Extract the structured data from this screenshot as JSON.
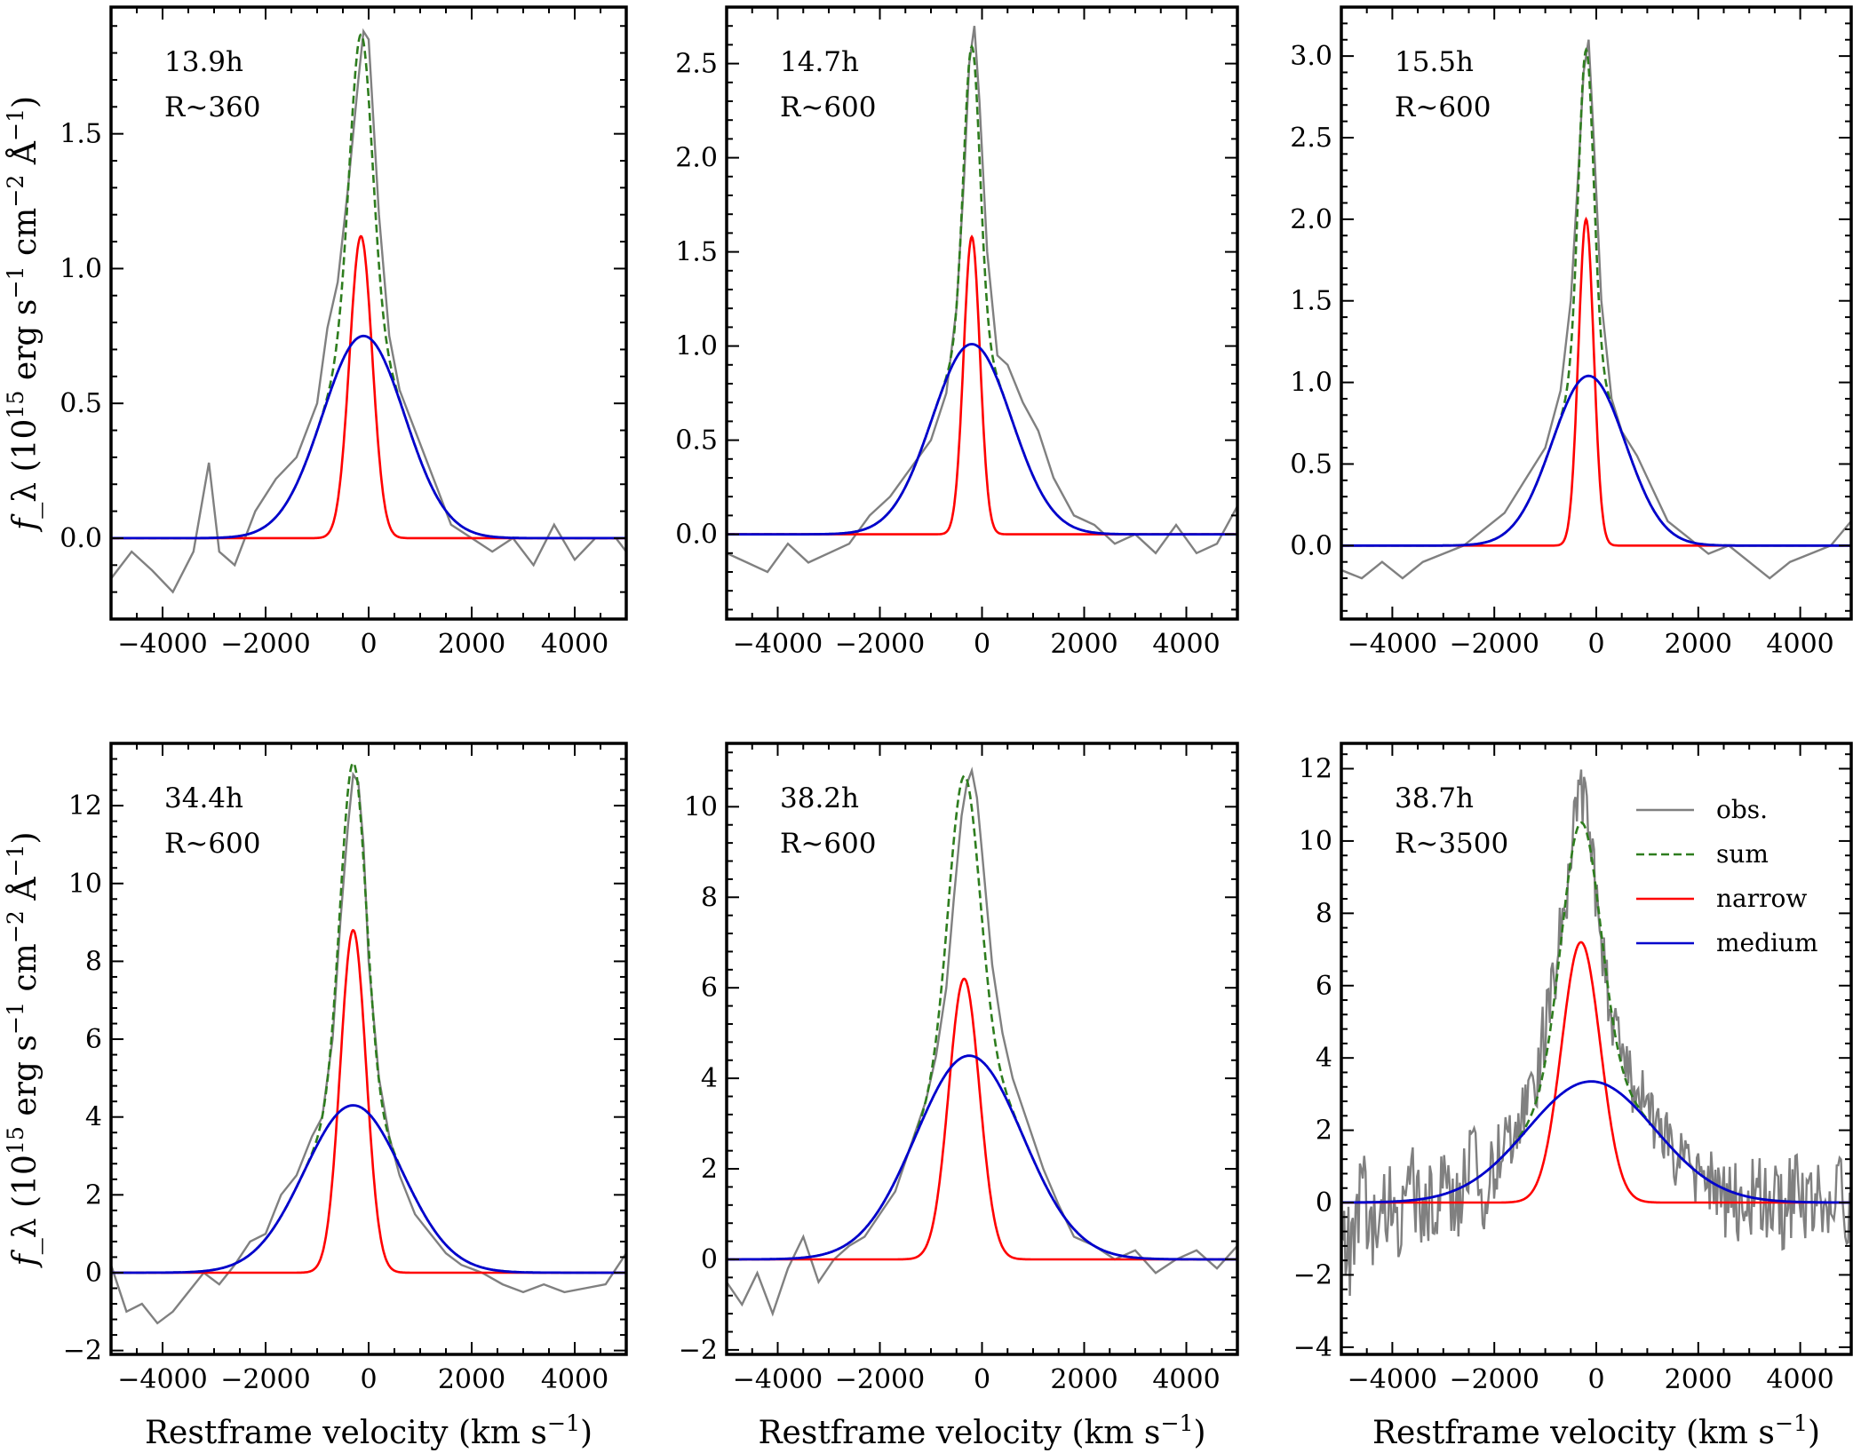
{
  "chart_data": [
    {
      "type": "line",
      "annotation_time": "13.9h",
      "annotation_resolution": "R~360",
      "xlim": [
        -5000,
        5000
      ],
      "ylim": [
        -0.3,
        1.97
      ],
      "x_ticks": [
        -4000,
        -2000,
        0,
        2000,
        4000
      ],
      "x_tick_labels": [
        "-4000",
        "-2000",
        "0",
        "2000",
        "4000"
      ],
      "y_ticks": [
        0.0,
        0.5,
        1.0,
        1.5
      ],
      "y_tick_labels": [
        "0.0",
        "0.5",
        "1.0",
        "1.5"
      ],
      "ylabel": "f_λ (10^15 erg s^-1 cm^-2 Å^-1)",
      "xlabel": "",
      "narrow": {
        "amplitude": 1.12,
        "center": -150,
        "sigma": 220
      },
      "medium": {
        "amplitude": 0.75,
        "center": -100,
        "sigma": 800
      },
      "observed": {
        "x": [
          -5000,
          -4600,
          -4200,
          -3800,
          -3400,
          -3100,
          -2900,
          -2600,
          -2200,
          -1800,
          -1400,
          -1000,
          -800,
          -600,
          -400,
          -200,
          -100,
          0,
          200,
          400,
          600,
          800,
          1000,
          1300,
          1600,
          2000,
          2400,
          2800,
          3200,
          3600,
          4000,
          4400,
          4800,
          5000
        ],
        "y": [
          -0.15,
          -0.05,
          -0.12,
          -0.2,
          -0.05,
          0.28,
          -0.05,
          -0.1,
          0.1,
          0.22,
          0.3,
          0.5,
          0.78,
          0.95,
          1.3,
          1.7,
          1.88,
          1.85,
          1.2,
          0.75,
          0.55,
          0.45,
          0.35,
          0.2,
          0.05,
          0.0,
          -0.05,
          0.0,
          -0.1,
          0.05,
          -0.08,
          0.0,
          0.0,
          -0.05
        ]
      }
    },
    {
      "type": "line",
      "annotation_time": "14.7h",
      "annotation_resolution": "R~600",
      "xlim": [
        -5000,
        5000
      ],
      "ylim": [
        -0.45,
        2.8
      ],
      "x_ticks": [
        -4000,
        -2000,
        0,
        2000,
        4000
      ],
      "x_tick_labels": [
        "-4000",
        "-2000",
        "0",
        "2000",
        "4000"
      ],
      "y_ticks": [
        0.0,
        0.5,
        1.0,
        1.5,
        2.0,
        2.5
      ],
      "y_tick_labels": [
        "0.0",
        "0.5",
        "1.0",
        "1.5",
        "2.0",
        "2.5"
      ],
      "ylabel": "",
      "xlabel": "",
      "narrow": {
        "amplitude": 1.58,
        "center": -200,
        "sigma": 160
      },
      "medium": {
        "amplitude": 1.01,
        "center": -200,
        "sigma": 780
      },
      "observed": {
        "x": [
          -5000,
          -4600,
          -4200,
          -3800,
          -3400,
          -3000,
          -2600,
          -2200,
          -1800,
          -1400,
          -1000,
          -700,
          -500,
          -350,
          -250,
          -150,
          -50,
          100,
          300,
          500,
          800,
          1100,
          1400,
          1800,
          2200,
          2600,
          3000,
          3400,
          3800,
          4200,
          4600,
          5000
        ],
        "y": [
          -0.1,
          -0.15,
          -0.2,
          -0.05,
          -0.15,
          -0.1,
          -0.05,
          0.1,
          0.2,
          0.35,
          0.5,
          0.75,
          1.2,
          1.9,
          2.5,
          2.7,
          2.3,
          1.5,
          0.95,
          0.9,
          0.7,
          0.55,
          0.3,
          0.1,
          0.05,
          -0.05,
          0.0,
          -0.1,
          0.05,
          -0.1,
          -0.05,
          0.15
        ]
      }
    },
    {
      "type": "line",
      "annotation_time": "15.5h",
      "annotation_resolution": "R~600",
      "xlim": [
        -5000,
        5000
      ],
      "ylim": [
        -0.45,
        3.3
      ],
      "x_ticks": [
        -4000,
        -2000,
        0,
        2000,
        4000
      ],
      "x_tick_labels": [
        "-4000",
        "-2000",
        "0",
        "2000",
        "4000"
      ],
      "y_ticks": [
        0.0,
        0.5,
        1.0,
        1.5,
        2.0,
        2.5,
        3.0
      ],
      "y_tick_labels": [
        "0.0",
        "0.5",
        "1.0",
        "1.5",
        "2.0",
        "2.5",
        "3.0"
      ],
      "ylabel": "",
      "xlabel": "",
      "narrow": {
        "amplitude": 2.0,
        "center": -200,
        "sigma": 150
      },
      "medium": {
        "amplitude": 1.04,
        "center": -150,
        "sigma": 720
      },
      "observed": {
        "x": [
          -5000,
          -4600,
          -4200,
          -3800,
          -3400,
          -3000,
          -2600,
          -2200,
          -1800,
          -1400,
          -1000,
          -700,
          -500,
          -350,
          -250,
          -150,
          -50,
          100,
          300,
          500,
          800,
          1100,
          1400,
          1800,
          2200,
          2600,
          3000,
          3400,
          3800,
          4200,
          4600,
          5000
        ],
        "y": [
          -0.15,
          -0.2,
          -0.1,
          -0.2,
          -0.1,
          -0.05,
          0.0,
          0.1,
          0.2,
          0.4,
          0.6,
          0.95,
          1.5,
          2.3,
          2.9,
          3.1,
          2.5,
          1.5,
          0.9,
          0.7,
          0.55,
          0.35,
          0.15,
          0.05,
          -0.05,
          0.0,
          -0.1,
          -0.2,
          -0.1,
          -0.05,
          0.0,
          0.15
        ]
      }
    },
    {
      "type": "line",
      "annotation_time": "34.4h",
      "annotation_resolution": "R~600",
      "xlim": [
        -5000,
        5000
      ],
      "ylim": [
        -2.1,
        13.6
      ],
      "x_ticks": [
        -4000,
        -2000,
        0,
        2000,
        4000
      ],
      "x_tick_labels": [
        "-4000",
        "-2000",
        "0",
        "2000",
        "4000"
      ],
      "y_ticks": [
        -2,
        0,
        2,
        4,
        6,
        8,
        10,
        12
      ],
      "y_tick_labels": [
        "−2",
        "0",
        "2",
        "4",
        "6",
        "8",
        "10",
        "12"
      ],
      "ylabel": "f_λ (10^15 erg s^-1 cm^-2 Å^-1)",
      "xlabel": "Restframe velocity (km s^-1)",
      "narrow": {
        "amplitude": 8.8,
        "center": -300,
        "sigma": 250
      },
      "medium": {
        "amplitude": 4.3,
        "center": -300,
        "sigma": 950
      },
      "observed": {
        "x": [
          -5000,
          -4700,
          -4400,
          -4100,
          -3800,
          -3500,
          -3200,
          -2900,
          -2600,
          -2300,
          -2000,
          -1700,
          -1400,
          -1100,
          -900,
          -700,
          -550,
          -400,
          -300,
          -200,
          -100,
          0,
          200,
          400,
          600,
          900,
          1200,
          1500,
          1800,
          2200,
          2600,
          3000,
          3400,
          3800,
          4200,
          4600,
          5000
        ],
        "y": [
          0.2,
          -1.0,
          -0.8,
          -1.3,
          -1.0,
          -0.5,
          0.0,
          -0.3,
          0.2,
          0.8,
          1.0,
          2.0,
          2.5,
          3.5,
          4.0,
          6.0,
          9.0,
          11.5,
          12.8,
          12.6,
          11.0,
          8.0,
          5.0,
          3.5,
          2.5,
          1.5,
          1.0,
          0.5,
          0.2,
          0.0,
          -0.3,
          -0.5,
          -0.3,
          -0.5,
          -0.4,
          -0.3,
          0.5
        ]
      }
    },
    {
      "type": "line",
      "annotation_time": "38.2h",
      "annotation_resolution": "R~600",
      "xlim": [
        -5000,
        5000
      ],
      "ylim": [
        -2.1,
        11.4
      ],
      "x_ticks": [
        -4000,
        -2000,
        0,
        2000,
        4000
      ],
      "x_tick_labels": [
        "-4000",
        "-2000",
        "0",
        "2000",
        "4000"
      ],
      "y_ticks": [
        -2,
        0,
        2,
        4,
        6,
        8,
        10
      ],
      "y_tick_labels": [
        "−2",
        "0",
        "2",
        "4",
        "6",
        "8",
        "10"
      ],
      "ylabel": "",
      "xlabel": "Restframe velocity (km s^-1)",
      "narrow": {
        "amplitude": 6.2,
        "center": -350,
        "sigma": 300
      },
      "medium": {
        "amplitude": 4.5,
        "center": -250,
        "sigma": 1050
      },
      "observed": {
        "x": [
          -5000,
          -4700,
          -4400,
          -4100,
          -3800,
          -3500,
          -3200,
          -2900,
          -2600,
          -2300,
          -2000,
          -1700,
          -1400,
          -1100,
          -900,
          -700,
          -550,
          -400,
          -300,
          -200,
          -100,
          0,
          200,
          400,
          600,
          900,
          1200,
          1500,
          1800,
          2200,
          2600,
          3000,
          3400,
          3800,
          4200,
          4600,
          5000
        ],
        "y": [
          -0.5,
          -1.0,
          -0.3,
          -1.2,
          -0.2,
          0.5,
          -0.5,
          0.0,
          0.3,
          0.5,
          1.0,
          1.5,
          2.5,
          3.5,
          4.5,
          6.0,
          8.0,
          9.8,
          10.5,
          10.8,
          10.2,
          9.0,
          6.5,
          5.0,
          4.0,
          3.0,
          2.0,
          1.2,
          0.5,
          0.3,
          0.0,
          0.2,
          -0.3,
          0.0,
          0.2,
          -0.2,
          0.3
        ]
      }
    },
    {
      "type": "line",
      "annotation_time": "38.7h",
      "annotation_resolution": "R~3500",
      "xlim": [
        -5000,
        5000
      ],
      "ylim": [
        -4.2,
        12.7
      ],
      "x_ticks": [
        -4000,
        -2000,
        0,
        2000,
        4000
      ],
      "x_tick_labels": [
        "-4000",
        "-2000",
        "0",
        "2000",
        "4000"
      ],
      "y_ticks": [
        -4,
        -2,
        0,
        2,
        4,
        6,
        8,
        10,
        12
      ],
      "y_tick_labels": [
        "−4",
        "−2",
        "0",
        "2",
        "4",
        "6",
        "8",
        "10",
        "12"
      ],
      "ylabel": "",
      "xlabel": "Restframe velocity (km s^-1)",
      "narrow": {
        "amplitude": 7.2,
        "center": -300,
        "sigma": 380
      },
      "medium": {
        "amplitude": 3.35,
        "center": -100,
        "sigma": 1250
      },
      "noise_level": 1.2,
      "legend": {
        "position": "top-right",
        "entries": [
          {
            "label": "obs.",
            "color": "#808080",
            "dash": "solid"
          },
          {
            "label": "sum",
            "color": "#2e7d1e",
            "dash": "dashed"
          },
          {
            "label": "narrow",
            "color": "#ff0000",
            "dash": "solid"
          },
          {
            "label": "medium",
            "color": "#0000cc",
            "dash": "solid"
          }
        ]
      },
      "observed": {
        "x": [
          -5000,
          -4800,
          -4600,
          -4400,
          -4200,
          -4000,
          -3800,
          -3600,
          -3400,
          -3200,
          -3000,
          -2800,
          -2600,
          -2400,
          -2200,
          -2000,
          -1800,
          -1600,
          -1400,
          -1200,
          -1000,
          -800,
          -600,
          -450,
          -350,
          -250,
          -150,
          -50,
          100,
          300,
          500,
          700,
          900,
          1200,
          1500,
          1800,
          2100,
          2400,
          2700,
          3000,
          3300,
          3600,
          3900,
          4200,
          4500,
          4800,
          5000
        ],
        "y": [
          -1.5,
          -3.0,
          1.0,
          -2.0,
          -1.0,
          0.5,
          -1.5,
          1.0,
          -0.5,
          0.0,
          1.2,
          -0.8,
          0.5,
          2.5,
          -0.5,
          1.0,
          2.0,
          2.5,
          3.5,
          4.0,
          6.0,
          7.0,
          8.5,
          10.5,
          11.5,
          12.0,
          10.5,
          9.0,
          6.5,
          5.0,
          4.5,
          4.0,
          3.0,
          2.5,
          1.5,
          0.5,
          1.0,
          0.0,
          -0.5,
          0.5,
          0.0,
          -0.5,
          0.5,
          0.0,
          -0.5,
          0.3,
          -1.0
        ]
      }
    }
  ],
  "colors": {
    "observed": "#808080",
    "sum": "#2e7d1e",
    "narrow": "#ff0000",
    "medium": "#0000cc"
  }
}
